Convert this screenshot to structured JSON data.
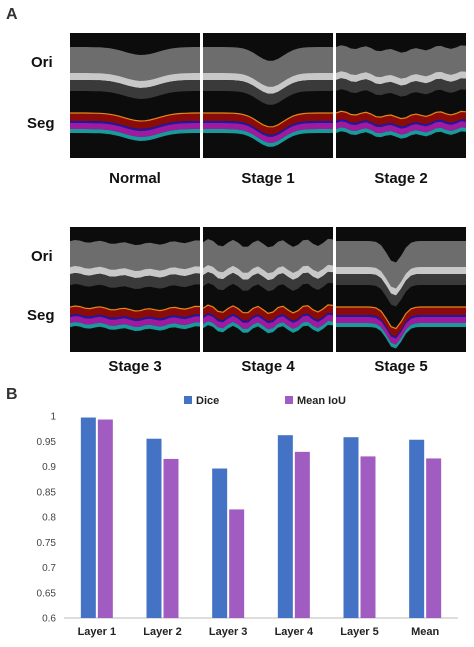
{
  "panel_a": {
    "letter": "A",
    "row_labels": {
      "ori": "Ori",
      "seg": "Seg"
    },
    "stages": [
      "Normal",
      "Stage 1",
      "Stage 2",
      "Stage 3",
      "Stage 4",
      "Stage 5"
    ]
  },
  "panel_b": {
    "letter": "B"
  },
  "colors": {
    "layer_red": "#8b0a0a",
    "layer_orange_edge": "#e28a1a",
    "layer_blue": "#1a1aa8",
    "layer_magenta": "#a01aa0",
    "layer_teal": "#1a9a9a",
    "dice": "#4472c4",
    "iou": "#a05cc0"
  },
  "chart_data": {
    "type": "bar",
    "categories": [
      "Layer 1",
      "Layer 2",
      "Layer 3",
      "Layer 4",
      "Layer 5",
      "Mean"
    ],
    "series": [
      {
        "name": "Dice",
        "values": [
          0.997,
          0.955,
          0.896,
          0.962,
          0.958,
          0.953
        ],
        "color": "#4472c4"
      },
      {
        "name": "Mean IoU",
        "values": [
          0.993,
          0.915,
          0.815,
          0.929,
          0.92,
          0.916
        ],
        "color": "#a05cc0"
      }
    ],
    "yticks": [
      "0.6",
      "0.65",
      "0.7",
      "0.75",
      "0.8",
      "0.85",
      "0.9",
      "0.95",
      "1"
    ],
    "ylim": [
      0.6,
      1.0
    ],
    "title": "",
    "xlabel": "",
    "ylabel": "",
    "grid": false,
    "legend_position": "top"
  }
}
